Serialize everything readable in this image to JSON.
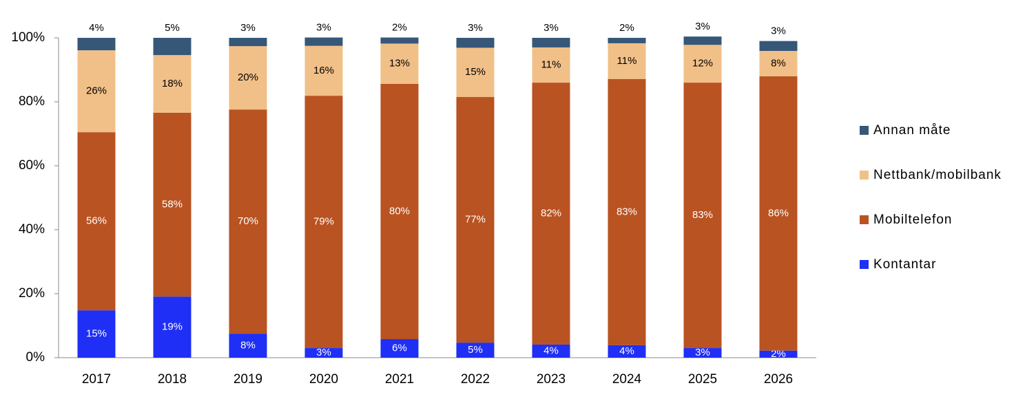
{
  "chart_data": {
    "type": "stacked_bar",
    "categories": [
      "2017",
      "2018",
      "2019",
      "2020",
      "2021",
      "2022",
      "2023",
      "2024",
      "2025",
      "2026"
    ],
    "series": [
      {
        "name": "Kontantar",
        "color": "#1f2ff5",
        "values": [
          14.8,
          19.1,
          7.5,
          3.0,
          5.8,
          4.7,
          4.1,
          3.9,
          3.0,
          2.2
        ],
        "value_labels": [
          "15%",
          "19%",
          "8%",
          "3%",
          "6%",
          "5%",
          "4%",
          "4%",
          "3%",
          "2%"
        ]
      },
      {
        "name": "Mobiltelefon",
        "color": "#b95322",
        "values": [
          55.7,
          57.5,
          70.1,
          78.9,
          79.8,
          76.8,
          81.9,
          83.2,
          83.0,
          85.8
        ],
        "value_labels": [
          "56%",
          "58%",
          "70%",
          "79%",
          "80%",
          "77%",
          "82%",
          "83%",
          "83%",
          "86%"
        ]
      },
      {
        "name": "Nettbank/mobilbank",
        "color": "#f1c088",
        "values": [
          25.6,
          18.0,
          19.8,
          15.6,
          12.6,
          15.4,
          11.0,
          11.2,
          11.8,
          7.9
        ],
        "value_labels": [
          "26%",
          "18%",
          "20%",
          "16%",
          "13%",
          "15%",
          "11%",
          "11%",
          "12%",
          "8%"
        ]
      },
      {
        "name": "Annan måte",
        "color": "#365778",
        "values": [
          3.9,
          5.4,
          2.6,
          2.6,
          1.9,
          3.1,
          3.0,
          1.7,
          2.6,
          3.1
        ],
        "value_labels": [
          "4%",
          "5%",
          "3%",
          "3%",
          "2%",
          "3%",
          "3%",
          "2%",
          "3%",
          "3%"
        ]
      }
    ],
    "ylim": [
      0,
      100
    ],
    "yticks": [
      {
        "value": 0,
        "label": "0%"
      },
      {
        "value": 20,
        "label": "20%"
      },
      {
        "value": 40,
        "label": "40%"
      },
      {
        "value": 60,
        "label": "60%"
      },
      {
        "value": 80,
        "label": "80%"
      },
      {
        "value": 100,
        "label": "100%"
      }
    ],
    "legend": "right"
  }
}
